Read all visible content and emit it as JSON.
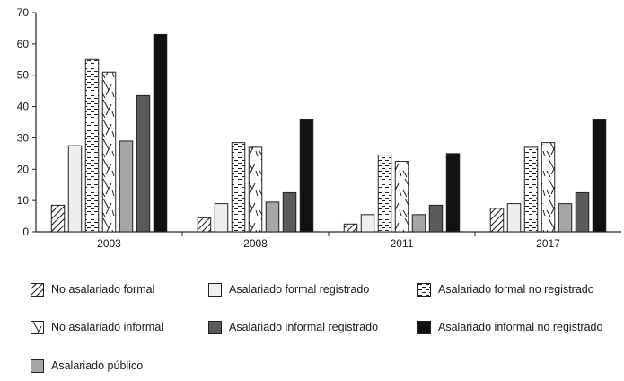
{
  "chart_data": {
    "type": "bar",
    "categories": [
      "2003",
      "2008",
      "2011",
      "2017"
    ],
    "ylim": [
      0,
      70
    ],
    "yticks": [
      0,
      10,
      20,
      30,
      40,
      50,
      60,
      70
    ],
    "series": [
      {
        "name": "No asalariado formal",
        "values": [
          8.5,
          4.5,
          2.5,
          7.5
        ],
        "pattern": "diag"
      },
      {
        "name": "Asalariado formal registrado",
        "values": [
          27.5,
          9,
          5.5,
          9
        ],
        "pattern": "light"
      },
      {
        "name": "Asalariado formal no registrado",
        "values": [
          55,
          28.5,
          24.5,
          27
        ],
        "pattern": "dash"
      },
      {
        "name": "No asalariado informal",
        "values": [
          51,
          27,
          22.5,
          28.5
        ],
        "pattern": "slash"
      },
      {
        "name": "Asalariado público",
        "values": [
          29,
          9.5,
          5.5,
          9
        ],
        "pattern": "mid"
      },
      {
        "name": "Asalariado informal registrado",
        "values": [
          43.5,
          12.5,
          8.5,
          12.5
        ],
        "pattern": "dark"
      },
      {
        "name": "Asalariado informal no registrado",
        "values": [
          63,
          36,
          25,
          36
        ],
        "pattern": "black"
      }
    ],
    "title": "",
    "xlabel": "",
    "ylabel": "",
    "legend_placement": "bottom",
    "legend_order": [
      "No asalariado formal",
      "Asalariado formal registrado",
      "Asalariado formal no registrado",
      "No asalariado informal",
      "Asalariado informal registrado",
      "Asalariado informal no registrado",
      "Asalariado público"
    ],
    "colors": {
      "light": "#eeeeee",
      "mid": "#a6a6a6",
      "dark": "#5a5a5a",
      "black": "#111111",
      "axis": "#222222"
    }
  }
}
